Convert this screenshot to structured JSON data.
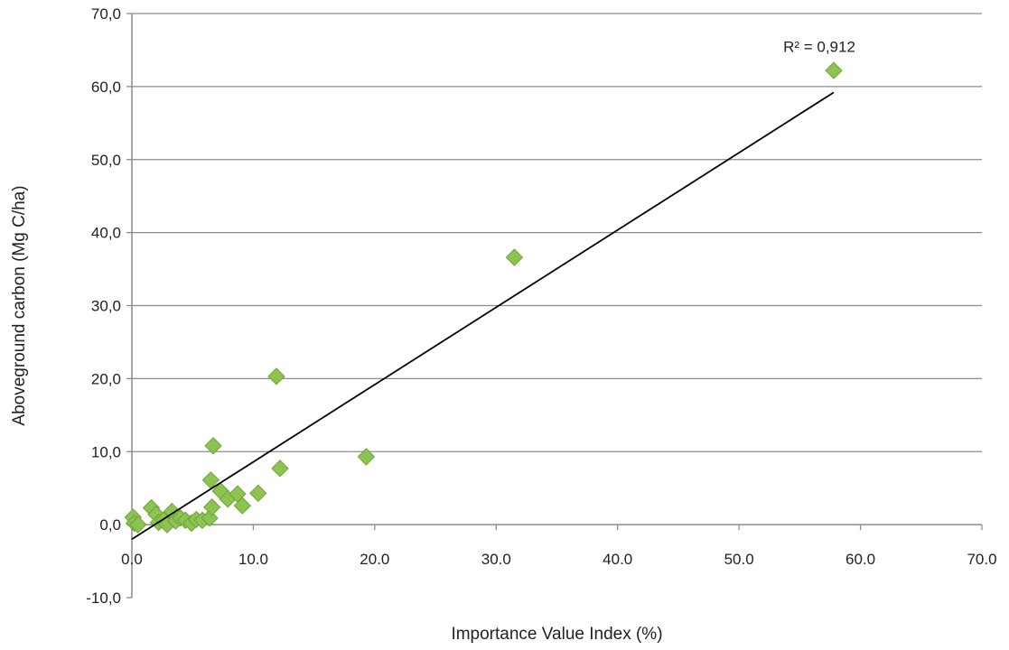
{
  "chart_data": {
    "type": "scatter",
    "title": "",
    "xlabel": "Importance Value Index (%)",
    "ylabel": "Aboveground carbon (Mg C/ha)",
    "xlim": [
      0,
      70
    ],
    "ylim": [
      -10,
      70
    ],
    "x_ticks": [
      {
        "value": 0,
        "label": "0.0"
      },
      {
        "value": 10,
        "label": "10.0"
      },
      {
        "value": 20,
        "label": "20.0"
      },
      {
        "value": 30,
        "label": "30.0"
      },
      {
        "value": 40,
        "label": "40.0"
      },
      {
        "value": 50,
        "label": "50.0"
      },
      {
        "value": 60,
        "label": "60.0"
      },
      {
        "value": 70,
        "label": "70.0"
      }
    ],
    "y_ticks": [
      {
        "value": -10,
        "label": "-10,0"
      },
      {
        "value": 0,
        "label": "0,0"
      },
      {
        "value": 10,
        "label": "10,0"
      },
      {
        "value": 20,
        "label": "20,0"
      },
      {
        "value": 30,
        "label": "30,0"
      },
      {
        "value": 40,
        "label": "40,0"
      },
      {
        "value": 50,
        "label": "50,0"
      },
      {
        "value": 60,
        "label": "60,0"
      },
      {
        "value": 70,
        "label": "70,0"
      }
    ],
    "grid": "horizontal",
    "legend": "none",
    "marker_color": "#8dc350",
    "marker_edge_color": "#6fa43a",
    "trendline_color": "#000000",
    "series": [
      {
        "marker": "diamond",
        "points": [
          {
            "x": 0.1,
            "y": 1.0
          },
          {
            "x": 0.2,
            "y": 0.2
          },
          {
            "x": 0.5,
            "y": 0.0
          },
          {
            "x": 1.6,
            "y": 2.3
          },
          {
            "x": 2.0,
            "y": 1.4
          },
          {
            "x": 2.2,
            "y": 0.3
          },
          {
            "x": 2.6,
            "y": 0.6
          },
          {
            "x": 2.9,
            "y": 0.0
          },
          {
            "x": 3.3,
            "y": 1.8
          },
          {
            "x": 3.6,
            "y": 0.5
          },
          {
            "x": 4.0,
            "y": 0.9
          },
          {
            "x": 4.4,
            "y": 0.6
          },
          {
            "x": 4.9,
            "y": 0.2
          },
          {
            "x": 5.3,
            "y": 0.7
          },
          {
            "x": 5.8,
            "y": 0.6
          },
          {
            "x": 6.4,
            "y": 0.9
          },
          {
            "x": 6.5,
            "y": 6.1
          },
          {
            "x": 6.6,
            "y": 2.4
          },
          {
            "x": 6.7,
            "y": 10.8
          },
          {
            "x": 7.3,
            "y": 4.6
          },
          {
            "x": 7.9,
            "y": 3.5
          },
          {
            "x": 8.7,
            "y": 4.2
          },
          {
            "x": 9.1,
            "y": 2.6
          },
          {
            "x": 10.4,
            "y": 4.3
          },
          {
            "x": 11.9,
            "y": 20.3
          },
          {
            "x": 12.2,
            "y": 7.7
          },
          {
            "x": 19.3,
            "y": 9.3
          },
          {
            "x": 31.5,
            "y": 36.6
          },
          {
            "x": 57.8,
            "y": 62.2
          }
        ]
      }
    ],
    "trendline": {
      "x": [
        0,
        57.8
      ],
      "y": [
        -2.0,
        59.2
      ]
    },
    "annotations": [
      {
        "text": "R² = 0,912",
        "x": 57.8,
        "y": 65.5
      }
    ]
  }
}
